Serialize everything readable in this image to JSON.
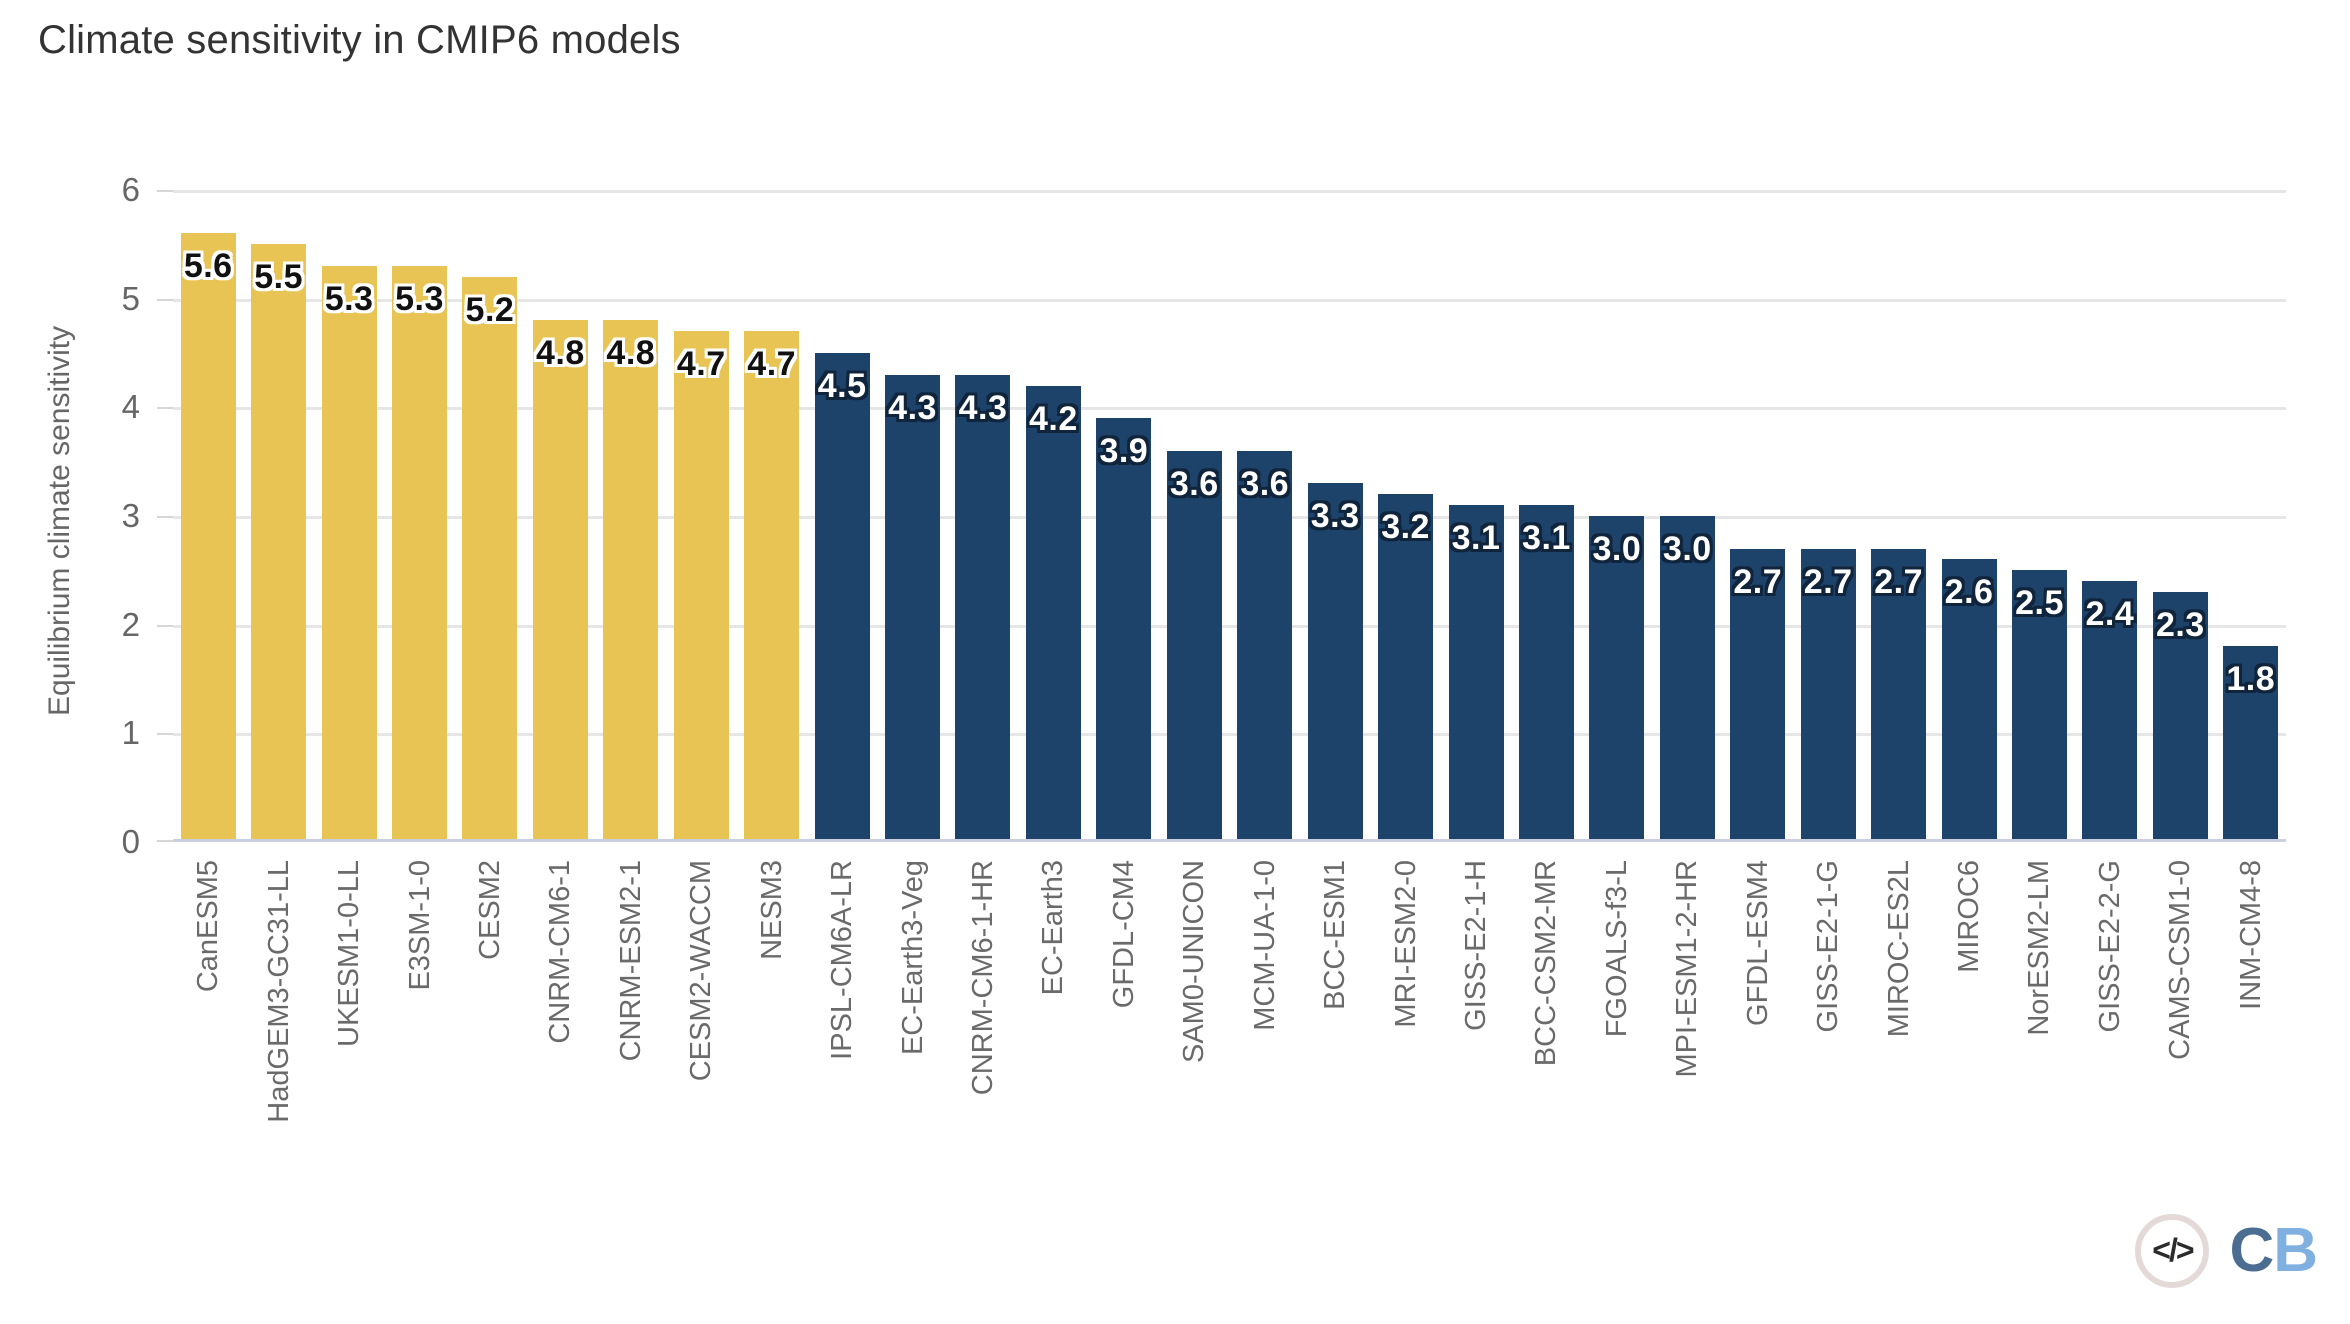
{
  "title": "Climate sensitivity in CMIP6 models",
  "chart_data": {
    "type": "bar",
    "title": "Climate sensitivity in CMIP6 models",
    "xlabel": "",
    "ylabel": "Equilibrium climate sensitivity",
    "ylim": [
      0,
      6
    ],
    "yticks": [
      0,
      1,
      2,
      3,
      4,
      5,
      6
    ],
    "grid": true,
    "legend_position": "none",
    "categories": [
      "CanESM5",
      "HadGEM3-GC31-LL",
      "UKESM1-0-LL",
      "E3SM-1-0",
      "CESM2",
      "CNRM-CM6-1",
      "CNRM-ESM2-1",
      "CESM2-WACCM",
      "NESM3",
      "IPSL-CM6A-LR",
      "EC-Earth3-Veg",
      "CNRM-CM6-1-HR",
      "EC-Earth3",
      "GFDL-CM4",
      "SAM0-UNICON",
      "MCM-UA-1-0",
      "BCC-ESM1",
      "MRI-ESM2-0",
      "GISS-E2-1-H",
      "BCC-CSM2-MR",
      "FGOALS-f3-L",
      "MPI-ESM1-2-HR",
      "GFDL-ESM4",
      "GISS-E2-1-G",
      "MIROC-ES2L",
      "MIROC6",
      "NorESM2-LM",
      "GISS-E2-2-G",
      "CAMS-CSM1-0",
      "INM-CM4-8"
    ],
    "values": [
      5.6,
      5.5,
      5.3,
      5.3,
      5.2,
      4.8,
      4.8,
      4.7,
      4.7,
      4.5,
      4.3,
      4.3,
      4.2,
      3.9,
      3.6,
      3.6,
      3.3,
      3.2,
      3.1,
      3.1,
      3.0,
      3.0,
      2.7,
      2.7,
      2.7,
      2.6,
      2.5,
      2.4,
      2.3,
      1.8
    ],
    "highlighted_bars": 9,
    "highlight_color": "#e8c454",
    "base_color": "#1e436b",
    "gridline_color": "#e6e6e6",
    "baseline_color": "#c9cfe0"
  },
  "footer": {
    "logo": {
      "code_icon": "</>",
      "wordmark_c": "C",
      "wordmark_b": "B",
      "c_color": "#4a6d91",
      "b_color": "#7fb0e0"
    }
  }
}
